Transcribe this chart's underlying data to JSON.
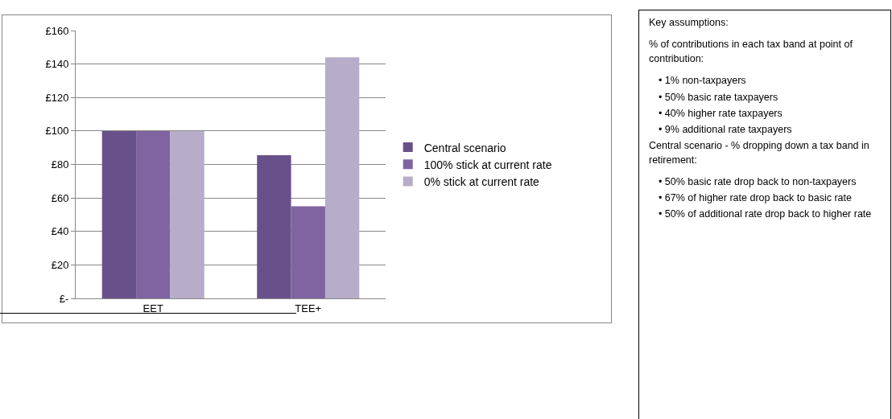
{
  "chart_data": {
    "type": "bar",
    "categories": [
      "EET",
      "TEE+"
    ],
    "series": [
      {
        "name": "Central scenario",
        "color": "#68518a",
        "values": [
          100,
          85.5
        ]
      },
      {
        "name": "100% stick at current rate",
        "color": "#8064a2",
        "values": [
          100,
          55
        ]
      },
      {
        "name": "0% stick at current rate",
        "color": "#b7adc9",
        "values": [
          100,
          144
        ]
      }
    ],
    "ylim": [
      0,
      160
    ],
    "yticks": [
      {
        "value": 0,
        "label": "£-"
      },
      {
        "value": 20,
        "label": "£20"
      },
      {
        "value": 40,
        "label": "£40"
      },
      {
        "value": 60,
        "label": "£60"
      },
      {
        "value": 80,
        "label": "£80"
      },
      {
        "value": 100,
        "label": "£100"
      },
      {
        "value": 120,
        "label": "£120"
      },
      {
        "value": 140,
        "label": "£140"
      },
      {
        "value": 160,
        "label": "£160"
      }
    ],
    "grid": "y",
    "legend": "right",
    "annotations": [
      "Key assumptions:",
      "% of contributions in each tax band at point of contribution:",
      "• 1% non-taxpayers",
      "• 50% basic rate taxpayers",
      "• 40% higher rate taxpayers",
      "• 9% additional rate taxpayers",
      "Central scenario - % dropping down a tax band in retirement:",
      "• 50% basic rate drop back to non-taxpayers",
      "• 67% of higher rate drop back to basic rate",
      "• 50% of additional rate drop back to higher rate"
    ]
  }
}
